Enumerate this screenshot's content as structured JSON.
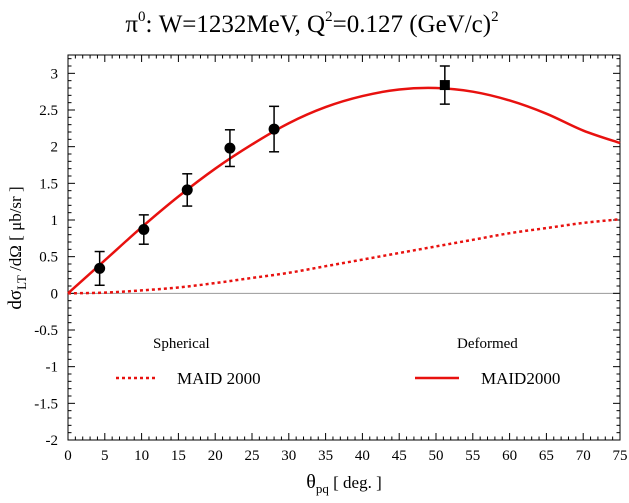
{
  "chart_data": {
    "type": "line",
    "title": {
      "main": "π",
      "main_sup": "0",
      "mid": ": W=1232MeV, Q",
      "mid_sup": "2",
      "tail": "=0.127 (GeV/c)",
      "tail_sup": "2"
    },
    "xlabel": {
      "main": "θ",
      "sub": "pq",
      "tail": " [ deg. ]"
    },
    "ylabel": {
      "pre": "dσ",
      "sub": "LT",
      "tail": " /dΩ [ μb/sr ]"
    },
    "xlim": [
      0,
      75
    ],
    "ylim": [
      -2,
      3.25
    ],
    "xticks": [
      0,
      5,
      10,
      15,
      20,
      25,
      30,
      35,
      40,
      45,
      50,
      55,
      60,
      65,
      70,
      75
    ],
    "xtick_labels": [
      "0",
      "5",
      "10",
      "15",
      "20",
      "25",
      "30",
      "35",
      "40",
      "45",
      "50",
      "55",
      "60",
      "65",
      "70",
      "75"
    ],
    "yticks": [
      -2,
      -1.5,
      -1,
      -0.5,
      0,
      0.5,
      1,
      1.5,
      2,
      2.5,
      3
    ],
    "ytick_labels": [
      "-2",
      "-1.5",
      "-1",
      "-0.5",
      "0",
      "0.5",
      "1",
      "1.5",
      "2",
      "2.5",
      "3"
    ],
    "zero_line": true,
    "grid": false,
    "series": [
      {
        "name": "MAID2000",
        "style": "solid",
        "color": "#e8110f",
        "x": [
          0,
          5,
          10,
          15,
          20,
          25,
          30,
          35,
          40,
          45,
          50,
          55,
          60,
          65,
          70,
          75
        ],
        "y": [
          0,
          0.45,
          0.9,
          1.32,
          1.7,
          2.03,
          2.32,
          2.54,
          2.69,
          2.78,
          2.8,
          2.75,
          2.63,
          2.45,
          2.22,
          2.05
        ]
      },
      {
        "name": "MAID 2000",
        "style": "dotted",
        "color": "#e8110f",
        "x": [
          0,
          5,
          10,
          15,
          20,
          25,
          30,
          35,
          40,
          45,
          50,
          55,
          60,
          65,
          70,
          75
        ],
        "y": [
          0,
          0.01,
          0.04,
          0.08,
          0.14,
          0.21,
          0.28,
          0.37,
          0.46,
          0.55,
          0.64,
          0.73,
          0.82,
          0.89,
          0.96,
          1.01
        ]
      }
    ],
    "points": [
      {
        "marker": "circle",
        "x": 4.3,
        "y": 0.34,
        "err": 0.23
      },
      {
        "marker": "circle",
        "x": 10.3,
        "y": 0.87,
        "err": 0.2
      },
      {
        "marker": "circle",
        "x": 16.2,
        "y": 1.41,
        "err": 0.22
      },
      {
        "marker": "circle",
        "x": 22.0,
        "y": 1.98,
        "err": 0.25
      },
      {
        "marker": "circle",
        "x": 28.0,
        "y": 2.24,
        "err": 0.31
      },
      {
        "marker": "square",
        "x": 51.2,
        "y": 2.84,
        "err": 0.26
      }
    ],
    "legend": {
      "groups": [
        "Spherical",
        "Deformed"
      ],
      "entries": [
        "MAID 2000",
        "MAID2000"
      ]
    }
  }
}
